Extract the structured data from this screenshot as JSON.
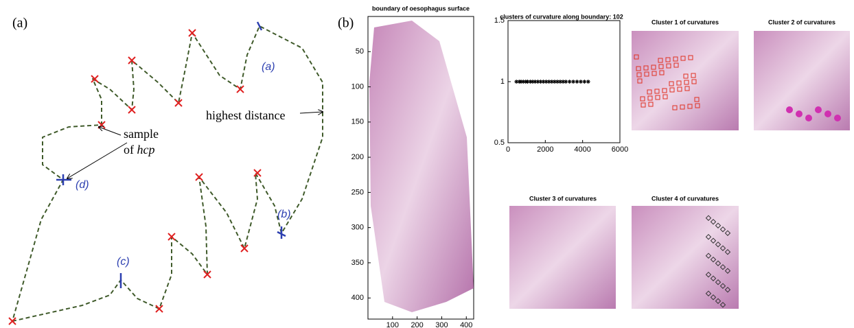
{
  "panel_a": {
    "label": "(a)",
    "highest_distance": "highest distance",
    "sample_line1": "sample",
    "sample_line2_prefix": "of ",
    "sample_line2_italic": "hcp",
    "point_labels": [
      "(a)",
      "(b)",
      "(c)",
      "(d)"
    ]
  },
  "panel_b": {
    "label": "(b)",
    "boundary_image": {
      "title": "boundary of oesophagus surface",
      "xlim": [
        0,
        430
      ],
      "ylim": [
        0,
        430
      ],
      "xticks": [
        100,
        200,
        300,
        400
      ],
      "yticks": [
        50,
        100,
        150,
        200,
        250,
        300,
        350,
        400
      ]
    },
    "cluster_titles": [
      "Cluster 1 of curvatures",
      "Cluster 2 of curvatures",
      "Cluster 3 of curvatures",
      "Cluster 4 of curvatures"
    ]
  },
  "chart_data": {
    "type": "scatter",
    "title": "clusters of curvature along boundary: 102",
    "x": [
      450,
      600,
      700,
      820,
      950,
      1050,
      1200,
      1320,
      1450,
      1600,
      1750,
      1900,
      2050,
      2200,
      2350,
      2500,
      2650,
      2800,
      2950,
      3100,
      3300,
      3500,
      3700,
      3900,
      4100,
      4300
    ],
    "values": [
      1,
      1,
      1,
      1,
      1,
      1,
      1,
      1,
      1,
      1,
      1,
      1,
      1,
      1,
      1,
      1,
      1,
      1,
      1,
      1,
      1,
      1,
      1,
      1,
      1,
      1
    ],
    "color": "#000000",
    "xlim": [
      0,
      6000
    ],
    "ylim": [
      0.5,
      1.5
    ],
    "xticks": [
      0,
      2000,
      4000,
      6000
    ],
    "yticks": [
      0.5,
      1,
      1.5
    ]
  }
}
